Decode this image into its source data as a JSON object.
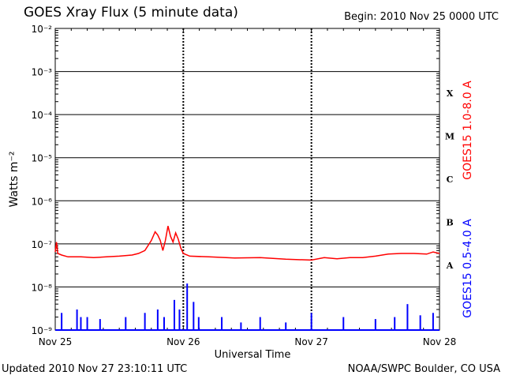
{
  "header": {
    "title": "GOES Xray Flux (5 minute data)",
    "begin": "Begin:  2010 Nov 25 0000 UTC"
  },
  "footer": {
    "updated": "Updated 2010 Nov 27 23:10:11 UTC",
    "credit": "NOAA/SWPC Boulder, CO USA"
  },
  "colors": {
    "long_channel": "#ff0000",
    "short_channel": "#0000ff",
    "axes": "#000000"
  },
  "chart_data": {
    "type": "line",
    "title": "GOES Xray Flux (5 minute data)",
    "xlabel": "Universal Time",
    "ylabel": "Watts m⁻²",
    "yscale": "log",
    "ylim": [
      1e-09,
      0.01
    ],
    "y_ticks": [
      "10⁻⁹",
      "10⁻⁸",
      "10⁻⁷",
      "10⁻⁶",
      "10⁻⁵",
      "10⁻⁴",
      "10⁻³",
      "10⁻²"
    ],
    "x_ticks": [
      "Nov 25",
      "Nov 26",
      "Nov 27",
      "Nov 28"
    ],
    "xlim_days": [
      0,
      3
    ],
    "flare_classes": [
      {
        "label": "A",
        "level": 1e-08
      },
      {
        "label": "B",
        "level": 1e-07
      },
      {
        "label": "C",
        "level": 1e-06
      },
      {
        "label": "M",
        "level": 1e-05
      },
      {
        "label": "X",
        "level": 0.0001
      }
    ],
    "series": [
      {
        "name": "GOES15 1.0-8.0 A",
        "color": "#ff0000",
        "points": [
          [
            0.0,
            6.5e-08
          ],
          [
            0.01,
            1.1e-07
          ],
          [
            0.02,
            6e-08
          ],
          [
            0.05,
            5.5e-08
          ],
          [
            0.1,
            5e-08
          ],
          [
            0.2,
            5e-08
          ],
          [
            0.3,
            4.8e-08
          ],
          [
            0.4,
            5e-08
          ],
          [
            0.5,
            5.2e-08
          ],
          [
            0.6,
            5.5e-08
          ],
          [
            0.65,
            6e-08
          ],
          [
            0.7,
            7e-08
          ],
          [
            0.75,
            1.2e-07
          ],
          [
            0.78,
            1.9e-07
          ],
          [
            0.8,
            1.6e-07
          ],
          [
            0.82,
            1.2e-07
          ],
          [
            0.84,
            7e-08
          ],
          [
            0.86,
            1.2e-07
          ],
          [
            0.88,
            2.6e-07
          ],
          [
            0.9,
            1.5e-07
          ],
          [
            0.92,
            1.1e-07
          ],
          [
            0.94,
            1.8e-07
          ],
          [
            0.96,
            1.3e-07
          ],
          [
            0.98,
            8e-08
          ],
          [
            1.0,
            6e-08
          ],
          [
            1.05,
            5.2e-08
          ],
          [
            1.2,
            5e-08
          ],
          [
            1.4,
            4.7e-08
          ],
          [
            1.6,
            4.8e-08
          ],
          [
            1.8,
            4.4e-08
          ],
          [
            2.0,
            4.2e-08
          ],
          [
            2.1,
            4.8e-08
          ],
          [
            2.2,
            4.5e-08
          ],
          [
            2.3,
            4.8e-08
          ],
          [
            2.4,
            4.8e-08
          ],
          [
            2.5,
            5.2e-08
          ],
          [
            2.6,
            5.8e-08
          ],
          [
            2.7,
            6e-08
          ],
          [
            2.8,
            6e-08
          ],
          [
            2.9,
            5.8e-08
          ],
          [
            2.95,
            6.5e-08
          ],
          [
            3.0,
            6e-08
          ]
        ]
      },
      {
        "name": "GOES15 0.5-4.0 A",
        "color": "#0000ff",
        "baseline": 1e-09,
        "spikes": [
          [
            0.05,
            2.5e-09
          ],
          [
            0.17,
            3e-09
          ],
          [
            0.2,
            2e-09
          ],
          [
            0.25,
            2e-09
          ],
          [
            0.35,
            1.8e-09
          ],
          [
            0.55,
            2e-09
          ],
          [
            0.7,
            2.5e-09
          ],
          [
            0.8,
            3e-09
          ],
          [
            0.85,
            2e-09
          ],
          [
            0.93,
            5e-09
          ],
          [
            0.97,
            3e-09
          ],
          [
            1.03,
            1.2e-08
          ],
          [
            1.08,
            4.5e-09
          ],
          [
            1.12,
            2e-09
          ],
          [
            1.3,
            2e-09
          ],
          [
            1.45,
            1.5e-09
          ],
          [
            1.6,
            2e-09
          ],
          [
            1.8,
            1.5e-09
          ],
          [
            2.0,
            2.5e-09
          ],
          [
            2.25,
            2e-09
          ],
          [
            2.5,
            1.8e-09
          ],
          [
            2.65,
            2e-09
          ],
          [
            2.75,
            4e-09
          ],
          [
            2.85,
            2.2e-09
          ],
          [
            2.95,
            2.5e-09
          ]
        ]
      }
    ],
    "grid": true
  }
}
